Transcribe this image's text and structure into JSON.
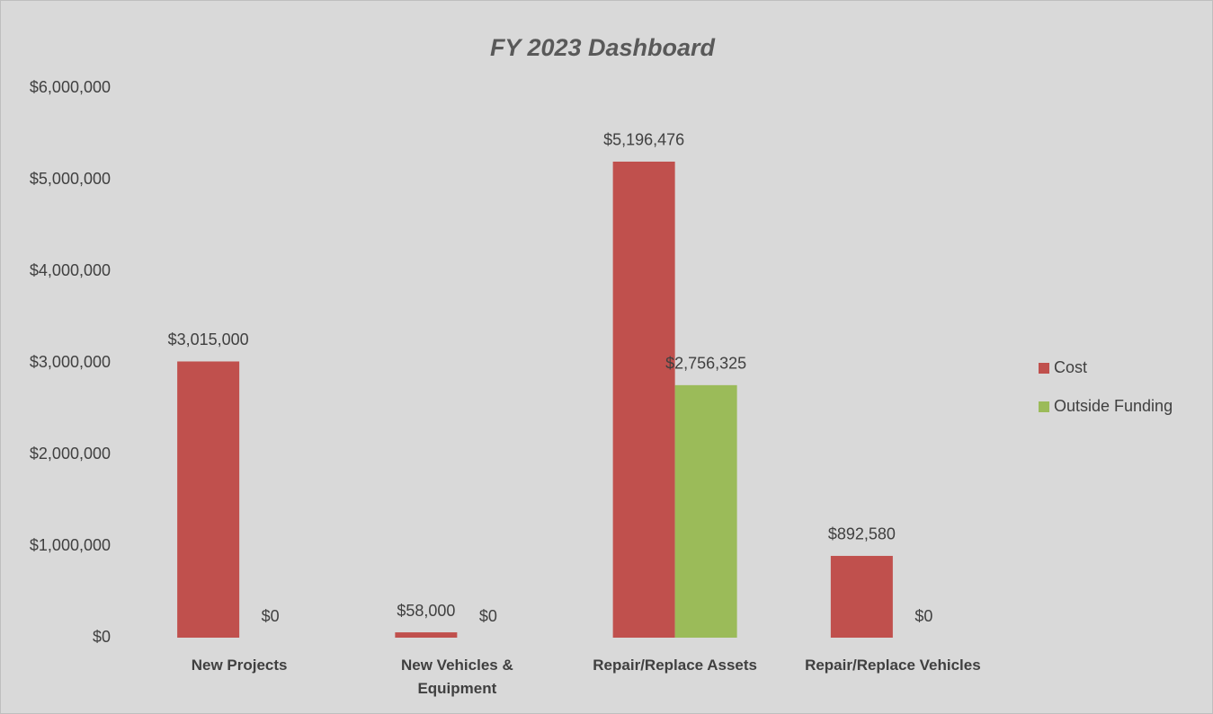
{
  "chart_data": {
    "type": "bar",
    "title": "FY 2023 Dashboard",
    "categories": [
      "New Projects",
      "New Vehicles & Equipment",
      "Repair/Replace Assets",
      "Repair/Replace Vehicles"
    ],
    "series": [
      {
        "name": "Cost",
        "color": "#c0504d",
        "values": [
          3015000,
          58000,
          5196476,
          892580
        ],
        "value_labels": [
          "$3,015,000",
          "$58,000",
          "$5,196,476",
          "$892,580"
        ]
      },
      {
        "name": "Outside Funding",
        "color": "#9bbb59",
        "values": [
          0,
          0,
          2756325,
          0
        ],
        "value_labels": [
          "$0",
          "$0",
          "$2,756,325",
          "$0"
        ]
      }
    ],
    "ylim": [
      0,
      6000000
    ],
    "yticks": [
      {
        "value": 0,
        "label": "$0"
      },
      {
        "value": 1000000,
        "label": "$1,000,000"
      },
      {
        "value": 2000000,
        "label": "$2,000,000"
      },
      {
        "value": 3000000,
        "label": "$3,000,000"
      },
      {
        "value": 4000000,
        "label": "$4,000,000"
      },
      {
        "value": 5000000,
        "label": "$5,000,000"
      },
      {
        "value": 6000000,
        "label": "$6,000,000"
      }
    ],
    "grid": false,
    "legend": "right"
  }
}
